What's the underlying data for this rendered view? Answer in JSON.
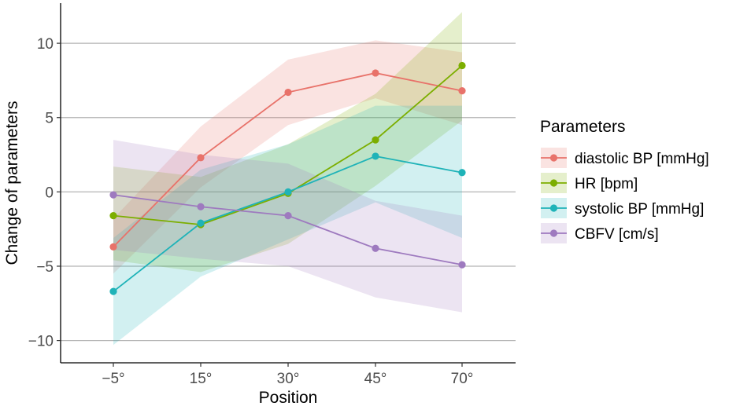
{
  "chart_data": {
    "type": "line",
    "title": "",
    "xlabel": "Position",
    "ylabel": "Change of parameters",
    "categories": [
      "−5°",
      "15°",
      "30°",
      "45°",
      "70°"
    ],
    "yticks": [
      -10,
      -5,
      0,
      5,
      10
    ],
    "ytick_labels": [
      "−10",
      "−5",
      "0",
      "5",
      "10"
    ],
    "ylim": [
      -11.5,
      12.7
    ],
    "grid": "horizontal-major",
    "legend": {
      "title": "Parameters",
      "placement": "right"
    },
    "series": [
      {
        "name": "diastolic BP [mmHg]",
        "color": "#E8726A",
        "values": [
          -3.7,
          2.3,
          6.7,
          8.0,
          6.8
        ],
        "lower": [
          -5.5,
          0.3,
          4.5,
          6.3,
          4.5
        ],
        "upper": [
          -1.8,
          4.4,
          8.9,
          10.2,
          9.4
        ]
      },
      {
        "name": "HR [bpm]",
        "color": "#7CAE00",
        "values": [
          -1.6,
          -2.2,
          -0.1,
          3.5,
          8.5
        ],
        "lower": [
          -4.6,
          -5.4,
          -3.5,
          0.4,
          4.8
        ],
        "upper": [
          1.7,
          1.0,
          3.2,
          6.6,
          12.1
        ]
      },
      {
        "name": "systolic BP [mmHg]",
        "color": "#1FB3B8",
        "values": [
          -6.7,
          -2.1,
          0.0,
          2.4,
          1.3
        ],
        "lower": [
          -10.3,
          -5.7,
          -3.2,
          -0.7,
          -3.1
        ],
        "upper": [
          -3.1,
          1.5,
          3.2,
          5.8,
          5.8
        ]
      },
      {
        "name": "CBFV [cm/s]",
        "color": "#9E7ABF",
        "values": [
          -0.2,
          -1.0,
          -1.6,
          -3.8,
          -4.9
        ],
        "lower": [
          -3.9,
          -4.5,
          -5.0,
          -7.1,
          -8.1
        ],
        "upper": [
          3.5,
          2.5,
          1.9,
          -0.6,
          -1.6
        ]
      }
    ]
  }
}
